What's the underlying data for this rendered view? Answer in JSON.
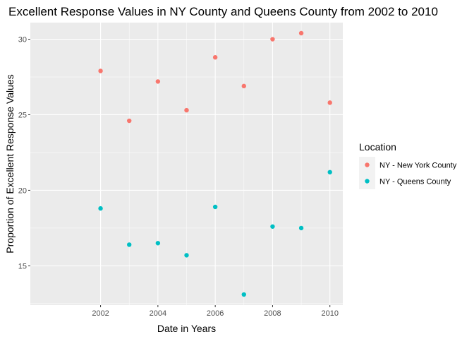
{
  "chart_data": {
    "type": "scatter",
    "title": "Excellent Response Values in NY County and Queens County from 2002 to 2010",
    "xlabel": "Date in Years",
    "ylabel": "Proportion of Excellent Response Values",
    "xlim": [
      1999.55,
      2010.45
    ],
    "ylim": [
      12.4,
      31.1
    ],
    "x_ticks": [
      2002,
      2004,
      2006,
      2008,
      2010
    ],
    "y_ticks": [
      15,
      20,
      25,
      30
    ],
    "grid": true,
    "legend": {
      "title": "Location",
      "position": "right"
    },
    "series": [
      {
        "name": "NY - New York County",
        "color": "#F8766D",
        "x": [
          2002,
          2003,
          2004,
          2005,
          2006,
          2007,
          2008,
          2009,
          2010
        ],
        "y": [
          27.9,
          24.6,
          27.2,
          25.3,
          28.8,
          26.9,
          30.0,
          30.4,
          25.8
        ]
      },
      {
        "name": "NY - Queens County",
        "color": "#00BFC4",
        "x": [
          2002,
          2003,
          2004,
          2005,
          2006,
          2007,
          2008,
          2009,
          2010
        ],
        "y": [
          18.8,
          16.4,
          16.5,
          15.7,
          18.9,
          13.1,
          17.6,
          17.5,
          21.2
        ]
      }
    ]
  }
}
